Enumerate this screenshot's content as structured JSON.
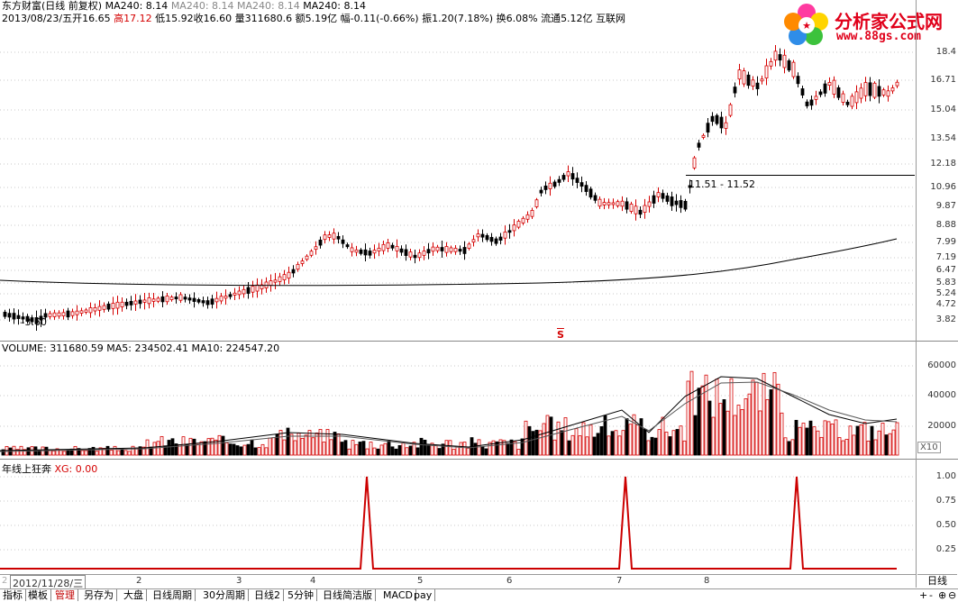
{
  "header": {
    "line1": {
      "title": "东方财富(日线 前复权)",
      "ma_items": [
        "MA240: 8.14",
        "MA240: 8.14",
        "MA240: 8.14",
        "MA240: 8.14"
      ]
    },
    "line2": {
      "date": "2013/08/23/五",
      "open_label": "开",
      "open": "16.65",
      "high_label": "高",
      "high": "17.12",
      "low_label": "低",
      "low": "15.92",
      "close_label": "收",
      "close": "16.60",
      "vol_label": "量",
      "vol": "311680.6",
      "amount_label": "额",
      "amount": "5.19亿",
      "chg_label": "幅",
      "chg": "-0.11(-0.66%)",
      "amp_label": "振",
      "amp": "1.20(7.18%)",
      "turn_label": "换",
      "turn": "6.08%",
      "float_label": "流通",
      "float": "5.12亿",
      "industry": "互联网"
    }
  },
  "logo": {
    "name": "分析家公式网",
    "url": "www.88gs.com"
  },
  "price_axis": [
    "18.4",
    "16.71",
    "15.04",
    "13.54",
    "12.18",
    "10.96",
    "9.87",
    "8.88",
    "7.99",
    "7.19",
    "6.47",
    "5.83",
    "5.24",
    "4.72",
    "3.82"
  ],
  "annotations": {
    "low_label": "3.60",
    "range_label": "11.51 - 11.52",
    "marker": "S"
  },
  "volume_panel": {
    "title": "VOLUME: 311680.59",
    "ma5": "MA5: 234502.41",
    "ma10": "MA10: 224547.20",
    "axis": [
      "60000",
      "40000",
      "20000"
    ],
    "unit": "X10"
  },
  "indicator_panel": {
    "title": "年线上狂奔",
    "xg": "XG: 0.00",
    "axis": [
      "1.00",
      "0.75",
      "0.50",
      "0.25"
    ]
  },
  "date_axis": {
    "start": "2012/11/28/三",
    "months": [
      "2",
      "3",
      "4",
      "5",
      "6",
      "7",
      "8"
    ],
    "first_label": "2"
  },
  "period_button": "日线",
  "tabs": [
    "指标",
    "模板",
    "管理",
    "另存为",
    "大盘",
    "日线周期",
    "30分周期",
    "日线2",
    "5分钟",
    "日线简洁版",
    "MACD",
    "pay"
  ],
  "active_tab_index": 2,
  "controls": [
    "+",
    "-",
    "⊕",
    "⊖"
  ],
  "colors": {
    "up": "#d40000",
    "down": "#000000",
    "ma240": "#000000",
    "signal": "#cc0000"
  }
}
